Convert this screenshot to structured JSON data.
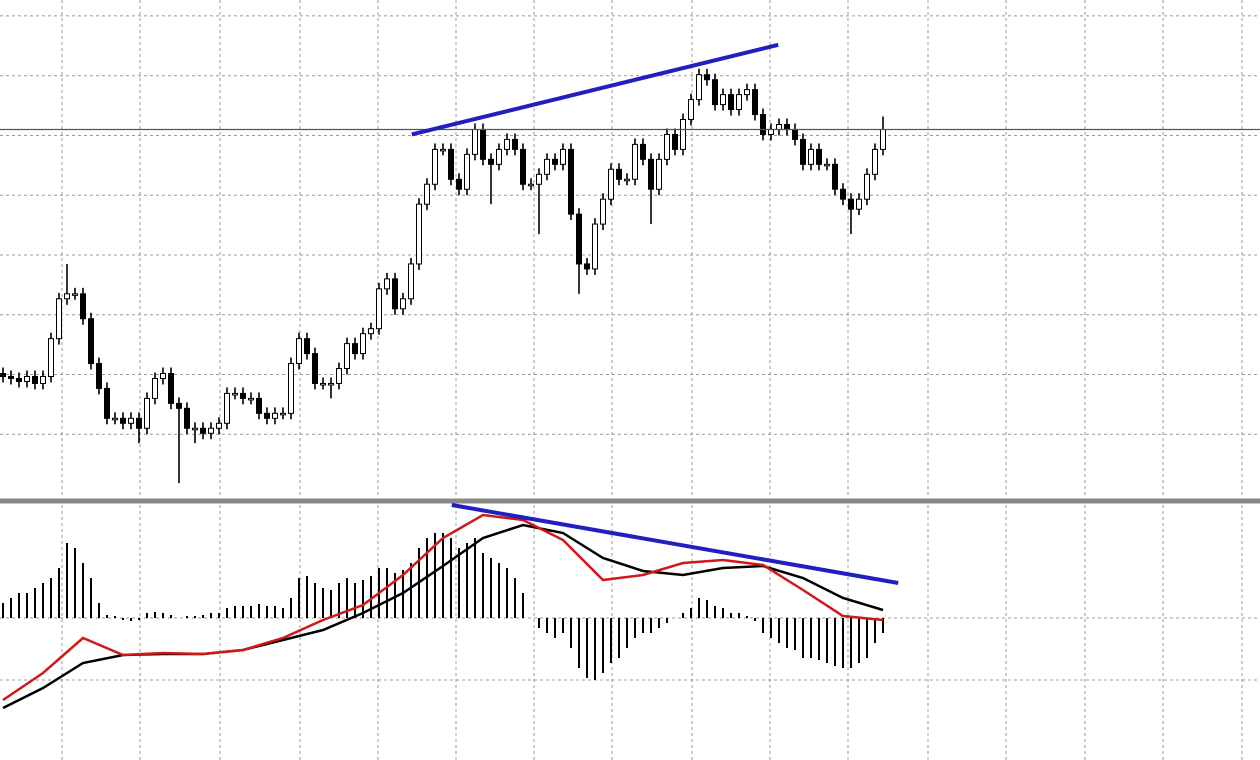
{
  "chart_data": [
    {
      "type": "candlestick",
      "xlim": [
        -0.375,
        157.125
      ],
      "ylim": [
        0,
        500
      ],
      "xticks": [
        7.375,
        17.125,
        27.125,
        37.125,
        46.875,
        56.625,
        66.375,
        76.125,
        86.125,
        95.875,
        105.625,
        115.625,
        125.375,
        135.25,
        145,
        154.875
      ],
      "yticks": [
        64,
        124,
        184,
        244,
        304,
        364,
        424,
        484
      ],
      "grid": true,
      "up_color": "#ffffff",
      "down_color": "#000000",
      "level": 370,
      "level_color": "#555555",
      "trendline": {
        "x": [
          51.1,
          96.9
        ],
        "y": [
          365,
          455
        ],
        "color": "#2020c0"
      },
      "open": [
        125,
        122,
        120,
        117,
        122,
        115,
        122,
        160,
        200,
        205,
        205,
        180,
        135,
        110,
        80,
        80,
        75,
        80,
        70,
        100,
        120,
        125,
        95,
        90,
        70,
        70,
        65,
        70,
        75,
        105,
        105,
        100,
        100,
        85,
        80,
        85,
        85,
        135,
        160,
        145,
        115,
        115,
        115,
        130,
        155,
        145,
        165,
        170,
        210,
        220,
        190,
        200,
        235,
        295,
        315,
        350,
        350,
        320,
        310,
        345,
        370,
        340,
        335,
        350,
        360,
        350,
        315,
        315,
        325,
        340,
        335,
        350,
        285,
        235,
        230,
        275,
        300,
        330,
        320,
        320,
        355,
        340,
        310,
        340,
        365,
        350,
        380,
        400,
        425,
        420,
        395,
        405,
        390,
        405,
        410,
        385,
        365,
        370,
        375,
        370,
        360,
        335,
        350,
        335,
        335,
        310,
        300,
        290,
        300,
        325,
        350
      ],
      "high": [
        131,
        128,
        126,
        128,
        128,
        128,
        166,
        206,
        235,
        211,
        211,
        186,
        141,
        116,
        86,
        86,
        86,
        86,
        106,
        126,
        131,
        131,
        101,
        96,
        76,
        76,
        76,
        81,
        111,
        111,
        111,
        106,
        106,
        91,
        91,
        91,
        141,
        166,
        166,
        151,
        121,
        121,
        136,
        161,
        161,
        171,
        176,
        216,
        226,
        226,
        206,
        241,
        301,
        321,
        356,
        356,
        356,
        326,
        351,
        376,
        376,
        346,
        356,
        366,
        366,
        356,
        321,
        331,
        346,
        346,
        356,
        356,
        291,
        241,
        281,
        306,
        336,
        336,
        326,
        361,
        361,
        346,
        346,
        371,
        371,
        386,
        406,
        431,
        431,
        426,
        411,
        411,
        411,
        416,
        416,
        391,
        376,
        381,
        381,
        376,
        366,
        356,
        356,
        341,
        341,
        316,
        306,
        306,
        331,
        356,
        383
      ],
      "low": [
        116,
        114,
        111,
        111,
        109,
        109,
        116,
        154,
        194,
        199,
        174,
        129,
        104,
        74,
        74,
        69,
        69,
        55,
        64,
        94,
        114,
        89,
        15,
        64,
        55,
        59,
        59,
        64,
        69,
        99,
        94,
        94,
        79,
        74,
        74,
        79,
        79,
        129,
        139,
        109,
        109,
        100,
        109,
        124,
        139,
        139,
        159,
        164,
        204,
        184,
        184,
        194,
        229,
        289,
        309,
        344,
        314,
        304,
        304,
        339,
        334,
        295,
        329,
        344,
        344,
        309,
        309,
        265,
        319,
        329,
        329,
        279,
        205,
        224,
        224,
        269,
        294,
        314,
        314,
        314,
        334,
        275,
        304,
        334,
        344,
        344,
        374,
        394,
        414,
        389,
        389,
        384,
        384,
        399,
        379,
        359,
        359,
        364,
        364,
        354,
        329,
        329,
        329,
        329,
        304,
        294,
        265,
        284,
        294,
        319,
        344
      ],
      "close": [
        122,
        120,
        117,
        122,
        115,
        122,
        160,
        200,
        205,
        205,
        180,
        135,
        110,
        80,
        80,
        75,
        80,
        70,
        100,
        120,
        125,
        95,
        90,
        70,
        70,
        65,
        70,
        75,
        105,
        105,
        100,
        100,
        85,
        80,
        85,
        85,
        135,
        160,
        145,
        115,
        115,
        115,
        130,
        155,
        145,
        165,
        170,
        210,
        220,
        190,
        200,
        235,
        295,
        315,
        350,
        350,
        320,
        310,
        345,
        370,
        340,
        335,
        350,
        360,
        350,
        315,
        315,
        325,
        340,
        335,
        350,
        285,
        235,
        230,
        275,
        300,
        330,
        320,
        320,
        355,
        340,
        310,
        340,
        365,
        350,
        380,
        400,
        425,
        420,
        395,
        405,
        390,
        405,
        410,
        385,
        365,
        370,
        375,
        370,
        360,
        335,
        350,
        335,
        335,
        310,
        300,
        290,
        300,
        325,
        350,
        370
      ]
    },
    {
      "type": "macd",
      "xlim": [
        -0.375,
        157.125
      ],
      "ylim": [
        -142,
        113
      ],
      "xticks": [
        7.375,
        17.125,
        27.125,
        37.125,
        46.875,
        56.625,
        66.375,
        76.125,
        86.125,
        95.875,
        105.625,
        115.625,
        125.375,
        135.25,
        145,
        154.875
      ],
      "yticks": [
        0,
        -62
      ],
      "grid": true,
      "histogram": {
        "color": "#000000",
        "values": [
          15,
          20,
          25,
          25,
          30,
          35,
          40,
          50,
          75,
          70,
          55,
          40,
          15,
          3,
          2,
          -2,
          -3,
          -2,
          5,
          6,
          5,
          3,
          0,
          2,
          2,
          3,
          5,
          5,
          10,
          12,
          12,
          12,
          14,
          12,
          12,
          10,
          20,
          40,
          42,
          35,
          30,
          28,
          35,
          40,
          35,
          38,
          42,
          50,
          50,
          45,
          48,
          55,
          70,
          80,
          85,
          85,
          80,
          70,
          75,
          80,
          65,
          60,
          55,
          50,
          40,
          25,
          0,
          -10,
          -15,
          -20,
          -15,
          -30,
          -50,
          -60,
          -62,
          -55,
          -45,
          -40,
          -30,
          -20,
          -15,
          -15,
          -10,
          -5,
          0,
          5,
          10,
          20,
          18,
          12,
          10,
          5,
          5,
          2,
          -3,
          -15,
          -20,
          -25,
          -30,
          -32,
          -40,
          -40,
          -42,
          -45,
          -48,
          -50,
          -50,
          -45,
          -40,
          -25,
          -15
        ]
      },
      "series": [
        {
          "color": "#000000",
          "x": [
            0,
            5,
            10,
            15,
            20,
            25,
            30,
            35,
            40,
            45,
            50,
            55,
            60,
            65,
            70,
            75,
            80,
            85,
            90,
            95,
            100,
            105,
            110
          ],
          "values": [
            -90,
            -70,
            -45,
            -37,
            -36,
            -36,
            -32,
            -22,
            -12,
            5,
            25,
            52,
            80,
            93,
            85,
            60,
            47,
            43,
            50,
            52,
            40,
            20,
            8
          ]
        },
        {
          "color": "#d01818",
          "x": [
            0,
            5,
            10,
            15,
            20,
            25,
            30,
            35,
            40,
            45,
            50,
            55,
            60,
            65,
            70,
            75,
            80,
            85,
            90,
            95,
            100,
            105,
            110
          ],
          "values": [
            -82,
            -55,
            -20,
            -37,
            -35,
            -36,
            -32,
            -20,
            -2,
            13,
            43,
            80,
            103,
            98,
            78,
            38,
            43,
            55,
            58,
            53,
            28,
            2,
            -2
          ]
        }
      ],
      "trendline": {
        "x": [
          56.1,
          111.9
        ],
        "y": [
          113,
          35
        ],
        "color": "#2020c0"
      }
    }
  ]
}
